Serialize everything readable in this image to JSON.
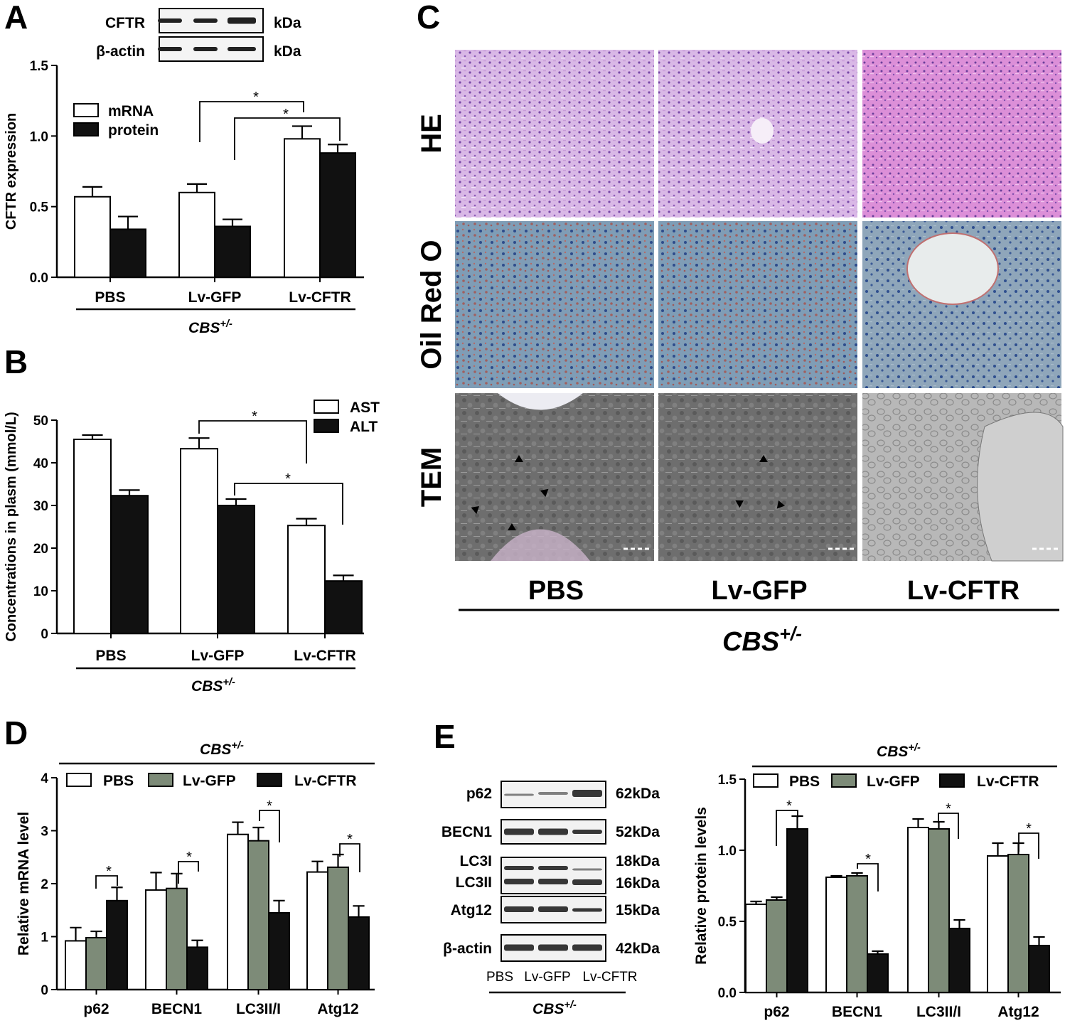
{
  "colors": {
    "open_bar": "#ffffff",
    "black_bar": "#111111",
    "grey_bar": "#7d8b78",
    "axis": "#000000"
  },
  "panel_letters": [
    "A",
    "B",
    "C",
    "D",
    "E"
  ],
  "genotype": {
    "base": "CBS",
    "sup": "+/-"
  },
  "panel_a": {
    "blot": {
      "rows": [
        "CFTR",
        "β-actin"
      ],
      "units": [
        "kDa",
        "kDa"
      ]
    },
    "sig_mark": "*"
  },
  "panel_c": {
    "row_labels": [
      "HE",
      "Oil Red O",
      "TEM"
    ],
    "col_labels": [
      "PBS",
      "Lv-GFP",
      "Lv-CFTR"
    ]
  },
  "panel_e_blot": {
    "rows": [
      "p62",
      "BECN1",
      "LC3I",
      "LC3II",
      "Atg12",
      "β-actin"
    ],
    "sizes": [
      "62kDa",
      "52kDa",
      "18kDa",
      "16kDa",
      "15kDa",
      "42kDa"
    ],
    "lanes": [
      "PBS",
      "Lv-GFP",
      "Lv-CFTR"
    ]
  },
  "chart_data": [
    {
      "id": "A",
      "type": "bar",
      "ylabel": "CFTR expression",
      "ylim": [
        0,
        1.5
      ],
      "yticks": [
        "0.0",
        "0.5",
        "1.0",
        "1.5"
      ],
      "categories": [
        "PBS",
        "Lv-GFP",
        "Lv-CFTR"
      ],
      "series": [
        {
          "name": "mRNA",
          "color": "open",
          "values": [
            0.57,
            0.6,
            0.98
          ],
          "errors": [
            0.07,
            0.06,
            0.09
          ]
        },
        {
          "name": "protein",
          "color": "black",
          "values": [
            0.34,
            0.36,
            0.88
          ],
          "errors": [
            0.09,
            0.05,
            0.06
          ]
        }
      ],
      "legend": "top-left",
      "significance": [
        "*",
        "*"
      ]
    },
    {
      "id": "B",
      "type": "bar",
      "ylabel": "Concentrations in plasm (mmol/L)",
      "ylim": [
        0,
        50
      ],
      "yticks": [
        "0",
        "10",
        "20",
        "30",
        "40",
        "50"
      ],
      "categories": [
        "PBS",
        "Lv-GFP",
        "Lv-CFTR"
      ],
      "series": [
        {
          "name": "AST",
          "color": "open",
          "values": [
            45.5,
            43.3,
            25.3
          ],
          "errors": [
            1.0,
            2.5,
            1.6
          ]
        },
        {
          "name": "ALT",
          "color": "black",
          "values": [
            32.3,
            30.0,
            12.3
          ],
          "errors": [
            1.3,
            1.5,
            1.3
          ]
        }
      ],
      "legend": "top-right",
      "significance": [
        "*",
        "*"
      ]
    },
    {
      "id": "D",
      "type": "bar",
      "ylabel": "Relative mRNA level",
      "ylim": [
        0,
        4
      ],
      "yticks": [
        "0",
        "1",
        "2",
        "3",
        "4"
      ],
      "categories": [
        "p62",
        "BECN1",
        "LC3II/I",
        "Atg12"
      ],
      "series": [
        {
          "name": "PBS",
          "color": "open",
          "values": [
            0.92,
            1.88,
            2.93,
            2.22
          ],
          "errors": [
            0.25,
            0.33,
            0.23,
            0.2
          ]
        },
        {
          "name": "Lv-GFP",
          "color": "grey",
          "values": [
            0.98,
            1.91,
            2.81,
            2.31
          ],
          "errors": [
            0.12,
            0.28,
            0.25,
            0.24
          ]
        },
        {
          "name": "Lv-CFTR",
          "color": "black",
          "values": [
            1.68,
            0.8,
            1.45,
            1.37
          ],
          "errors": [
            0.25,
            0.13,
            0.23,
            0.21
          ]
        }
      ],
      "legend": "top",
      "significance": [
        "*",
        "*",
        "*",
        "*"
      ]
    },
    {
      "id": "E",
      "type": "bar",
      "ylabel": "Relative protein levels",
      "ylim": [
        0,
        1.5
      ],
      "yticks": [
        "0.0",
        "0.5",
        "1.0",
        "1.5"
      ],
      "categories": [
        "p62",
        "BECN1",
        "LC3II/I",
        "Atg12"
      ],
      "series": [
        {
          "name": "PBS",
          "color": "open",
          "values": [
            0.62,
            0.81,
            1.16,
            0.96
          ],
          "errors": [
            0.02,
            0.01,
            0.06,
            0.09
          ]
        },
        {
          "name": "Lv-GFP",
          "color": "grey",
          "values": [
            0.65,
            0.82,
            1.15,
            0.97
          ],
          "errors": [
            0.02,
            0.02,
            0.05,
            0.08
          ]
        },
        {
          "name": "Lv-CFTR",
          "color": "black",
          "values": [
            1.15,
            0.27,
            0.45,
            0.33
          ],
          "errors": [
            0.09,
            0.02,
            0.06,
            0.06
          ]
        }
      ],
      "legend": "top",
      "significance": [
        "*",
        "*",
        "*",
        "*"
      ]
    }
  ]
}
